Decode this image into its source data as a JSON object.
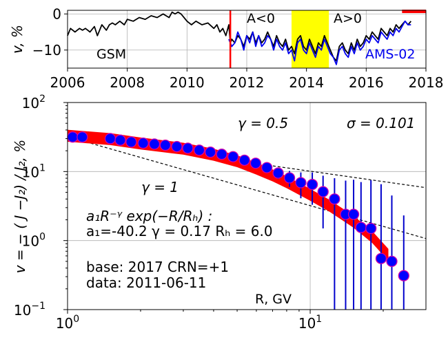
{
  "chart_data": [
    {
      "type": "line",
      "ylabel": "v, %",
      "xlim": [
        2006,
        2018
      ],
      "ylim": [
        -15,
        1
      ],
      "x_ticks": [
        "2006",
        "2008",
        "2010",
        "2012",
        "2014",
        "2016",
        "2018"
      ],
      "y_ticks": [
        "0",
        "−10"
      ],
      "grid": true,
      "annotations": {
        "left": "GSM",
        "neg": "A<0",
        "pos": "A>0",
        "ams": "AMS-02"
      },
      "event_line_x": 2011.45,
      "shaded_span": [
        2013.5,
        2014.75
      ],
      "base_bar": [
        2017.2,
        2018
      ],
      "colors": {
        "gsm": "#000000",
        "ams": "#0000ee",
        "event": "#ff0000",
        "shade": "#ffff00",
        "bar": "#ff0000"
      },
      "series": [
        {
          "name": "GSM",
          "x": [
            2006.0,
            2006.1,
            2006.25,
            2006.4,
            2006.5,
            2006.6,
            2006.75,
            2006.9,
            2007.0,
            2007.15,
            2007.3,
            2007.4,
            2007.5,
            2007.6,
            2007.75,
            2007.9,
            2008.0,
            2008.2,
            2008.4,
            2008.6,
            2008.8,
            2009.0,
            2009.2,
            2009.4,
            2009.5,
            2009.6,
            2009.7,
            2009.8,
            2009.9,
            2010.0,
            2010.15,
            2010.3,
            2010.5,
            2010.7,
            2010.9,
            2011.0,
            2011.1,
            2011.2,
            2011.3,
            2011.4,
            2011.45,
            2011.5,
            2011.6,
            2011.7,
            2011.8,
            2011.9,
            2012.0,
            2012.1,
            2012.2,
            2012.3,
            2012.4,
            2012.5,
            2012.6,
            2012.7,
            2012.8,
            2012.9,
            2013.0,
            2013.1,
            2013.2,
            2013.3,
            2013.4,
            2013.5,
            2013.6,
            2013.7,
            2013.8,
            2013.9,
            2014.0,
            2014.1,
            2014.2,
            2014.3,
            2014.4,
            2014.5,
            2014.6,
            2014.7,
            2014.8,
            2014.9,
            2015.0,
            2015.1,
            2015.2,
            2015.3,
            2015.4,
            2015.5,
            2015.6,
            2015.7,
            2015.8,
            2015.9,
            2016.0,
            2016.1,
            2016.2,
            2016.3,
            2016.4,
            2016.5,
            2016.6,
            2016.7,
            2016.8,
            2016.9,
            2017.0,
            2017.1,
            2017.2,
            2017.3,
            2017.4,
            2017.5
          ],
          "y": [
            -6,
            -4,
            -5,
            -4,
            -4.5,
            -4,
            -5,
            -3.5,
            -6,
            -3,
            -4.5,
            -3,
            -2.5,
            -3,
            -2,
            -3,
            -1.5,
            -2,
            -1,
            -1.5,
            -0.5,
            -1,
            0,
            -1,
            0.5,
            0,
            0.5,
            0,
            -1,
            -2,
            -3,
            -2,
            -3,
            -2.5,
            -4,
            -3,
            -5,
            -4,
            -6,
            -3,
            -8,
            -7,
            -8,
            -6,
            -7,
            -9,
            -6,
            -7,
            -5,
            -8,
            -6,
            -8,
            -7,
            -5,
            -7,
            -9,
            -6,
            -8,
            -9,
            -7,
            -10,
            -9,
            -11,
            -7,
            -6,
            -9,
            -10,
            -7,
            -9,
            -11,
            -8,
            -9,
            -6,
            -8,
            -10,
            -12,
            -13,
            -9,
            -8,
            -10,
            -11,
            -8,
            -10,
            -7,
            -9,
            -8,
            -6,
            -7,
            -5,
            -6,
            -7,
            -4,
            -5,
            -6,
            -4,
            -5,
            -3,
            -4,
            -3,
            -2,
            -3,
            -2
          ]
        },
        {
          "name": "AMS-02",
          "x": [
            2011.4,
            2011.5,
            2011.6,
            2011.7,
            2011.8,
            2011.9,
            2012.0,
            2012.1,
            2012.2,
            2012.3,
            2012.4,
            2012.5,
            2012.6,
            2012.7,
            2012.8,
            2012.9,
            2013.0,
            2013.1,
            2013.2,
            2013.3,
            2013.4,
            2013.5,
            2013.6,
            2013.7,
            2013.8,
            2013.9,
            2014.0,
            2014.1,
            2014.2,
            2014.3,
            2014.4,
            2014.5,
            2014.6,
            2014.7,
            2014.8,
            2014.9,
            2015.0,
            2015.1,
            2015.2,
            2015.3,
            2015.4,
            2015.5,
            2015.6,
            2015.7,
            2015.8,
            2015.9,
            2016.0,
            2016.1,
            2016.2,
            2016.3,
            2016.4,
            2016.5,
            2016.6,
            2016.7,
            2016.8,
            2016.9,
            2017.0,
            2017.1,
            2017.2,
            2017.3,
            2017.4,
            2017.5
          ],
          "y": [
            -7,
            -9,
            -8,
            -5,
            -7,
            -10,
            -6,
            -8,
            -5,
            -9,
            -6,
            -9,
            -8,
            -6,
            -7,
            -10,
            -7,
            -9,
            -10,
            -8,
            -11,
            -10,
            -13,
            -8,
            -7,
            -10,
            -11,
            -8,
            -10,
            -12,
            -9,
            -10,
            -7,
            -9,
            -11,
            -12,
            -14,
            -10,
            -9,
            -11,
            -12,
            -9,
            -11,
            -8,
            -10,
            -9,
            -7,
            -8,
            -6,
            -7,
            -8,
            -5,
            -6,
            -7,
            -5,
            -6,
            -4,
            -5,
            -3.5,
            -2,
            -3,
            -3
          ]
        }
      ]
    },
    {
      "type": "scatter",
      "xlabel": "R, GV",
      "ylabel": "v = − ( J −J₂) / J₂, %",
      "xscale": "log",
      "yscale": "log",
      "xlim": [
        1.0,
        30
      ],
      "ylim": [
        0.1,
        100
      ],
      "x_ticks": [
        {
          "value": 1,
          "base": "10",
          "exp": "0"
        },
        {
          "value": 10,
          "base": "10",
          "exp": "1"
        }
      ],
      "y_ticks": [
        {
          "value": 0.1,
          "base": "10",
          "exp": "−1"
        },
        {
          "value": 1,
          "base": "10",
          "exp": "0"
        },
        {
          "value": 10,
          "base": "10",
          "exp": "1"
        },
        {
          "value": 100,
          "base": "10",
          "exp": "2"
        }
      ],
      "grid": true,
      "annotations": {
        "gamma_half": "γ = 0.5",
        "sigma": "σ = 0.101",
        "gamma_one": "γ = 1",
        "fit_formula": "a₁R⁻ᵞ exp(−R/Rₕ) :",
        "fit_params": "a₁=-40.2  γ = 0.17  Rₕ =  6.0",
        "base": "base: 2017   CRN=+1",
        "data": "data: 2011-06-11"
      },
      "reference_lines": [
        {
          "gamma": 0.5,
          "x": [
            1.0,
            30
          ],
          "y": [
            32,
            5.84
          ]
        },
        {
          "gamma": 1,
          "x": [
            1.0,
            30
          ],
          "y": [
            32,
            1.07
          ]
        }
      ],
      "fit_band": {
        "x": [
          1.0,
          1.5,
          2.0,
          3.0,
          4.0,
          5.0,
          6.0,
          7.0,
          8.0,
          10.0,
          12.0,
          15.0,
          18.0,
          21.0
        ],
        "y": [
          33,
          29.5,
          25.5,
          21.4,
          17.5,
          14.1,
          11.0,
          8.8,
          7.0,
          4.6,
          3.2,
          1.9,
          1.13,
          0.62
        ],
        "rel_halfwidth": 0.22
      },
      "points": [
        {
          "x": 1.05,
          "y": 31.6,
          "err": 0
        },
        {
          "x": 1.15,
          "y": 31.6,
          "err": 0
        },
        {
          "x": 1.5,
          "y": 30.0,
          "err": 0
        },
        {
          "x": 1.65,
          "y": 28.5,
          "err": 0
        },
        {
          "x": 1.83,
          "y": 26.8,
          "err": 0
        },
        {
          "x": 2.05,
          "y": 25.8,
          "err": 0
        },
        {
          "x": 2.28,
          "y": 25.0,
          "err": 0
        },
        {
          "x": 2.53,
          "y": 24.1,
          "err": 0
        },
        {
          "x": 2.82,
          "y": 23.0,
          "err": 0
        },
        {
          "x": 3.13,
          "y": 21.8,
          "err": 0
        },
        {
          "x": 3.49,
          "y": 20.4,
          "err": 0
        },
        {
          "x": 3.88,
          "y": 19.1,
          "err": 0
        },
        {
          "x": 4.32,
          "y": 17.8,
          "err": 0
        },
        {
          "x": 4.81,
          "y": 16.4,
          "err": 0
        },
        {
          "x": 5.36,
          "y": 14.6,
          "err": 0
        },
        {
          "x": 5.96,
          "y": 13.2,
          "err": 0
        },
        {
          "x": 6.63,
          "y": 11.4,
          "err": 1.2
        },
        {
          "x": 7.38,
          "y": 9.5,
          "err": 1.7
        },
        {
          "x": 8.22,
          "y": 8.1,
          "err": 2.1
        },
        {
          "x": 9.15,
          "y": 6.9,
          "err": 2.8
        },
        {
          "x": 10.2,
          "y": 6.5,
          "err": 3.2
        },
        {
          "x": 11.3,
          "y": 5.1,
          "err": 3.6
        },
        {
          "x": 12.6,
          "y": 4.0,
          "err": 4.0
        },
        {
          "x": 14.0,
          "y": 2.4,
          "err": 5.0
        },
        {
          "x": 15.1,
          "y": 2.4,
          "err": 5.2
        },
        {
          "x": 16.2,
          "y": 1.55,
          "err": 5.5
        },
        {
          "x": 17.8,
          "y": 1.5,
          "err": 6.0
        },
        {
          "x": 19.6,
          "y": 0.55,
          "err": 6.0
        },
        {
          "x": 21.7,
          "y": 0.5,
          "err": 4.0
        },
        {
          "x": 24.3,
          "y": 0.31,
          "err": 2.0
        }
      ],
      "colors": {
        "band": "#ff0000",
        "marker_fill": "#0000ff",
        "marker_edge": "#d400aa",
        "error": "#0000cc",
        "dashed": "#000000"
      }
    }
  ]
}
